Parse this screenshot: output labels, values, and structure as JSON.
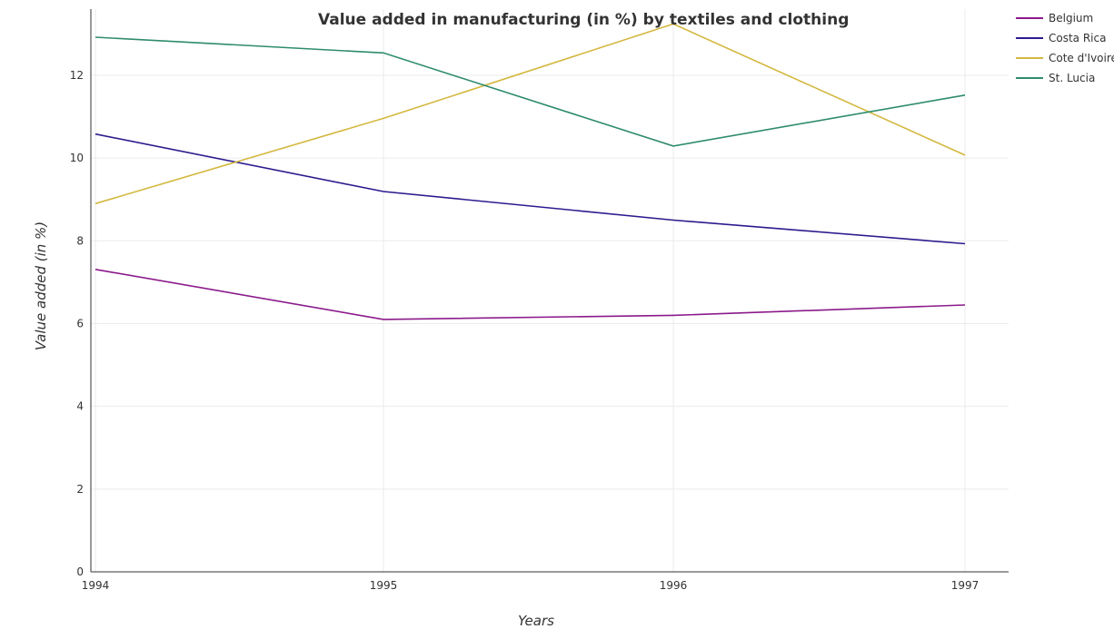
{
  "chart_data": {
    "type": "line",
    "title": "Value added in manufacturing (in %) by textiles and clothing",
    "xlabel": "Years",
    "ylabel": "Value added (in %)",
    "x": [
      "1994",
      "1995",
      "1996",
      "1997"
    ],
    "ylim": [
      0,
      13.6
    ],
    "yticks": [
      "0",
      "2",
      "4",
      "6",
      "8",
      "10",
      "12"
    ],
    "grid": true,
    "legend_position": "top-right",
    "series": [
      {
        "name": "Belgium",
        "color": "#8b1a8b",
        "values": [
          7.31,
          6.1,
          6.2,
          6.45
        ]
      },
      {
        "name": "Costa Rica",
        "color": "#2b1b8e",
        "values": [
          10.58,
          9.19,
          8.5,
          7.93
        ]
      },
      {
        "name": "Cote d'Ivoire",
        "color": "#d4b840",
        "values": [
          8.9,
          10.96,
          13.24,
          10.07
        ]
      },
      {
        "name": "St. Lucia",
        "color": "#2e8b6e",
        "values": [
          12.92,
          12.54,
          10.29,
          11.52
        ]
      }
    ]
  }
}
